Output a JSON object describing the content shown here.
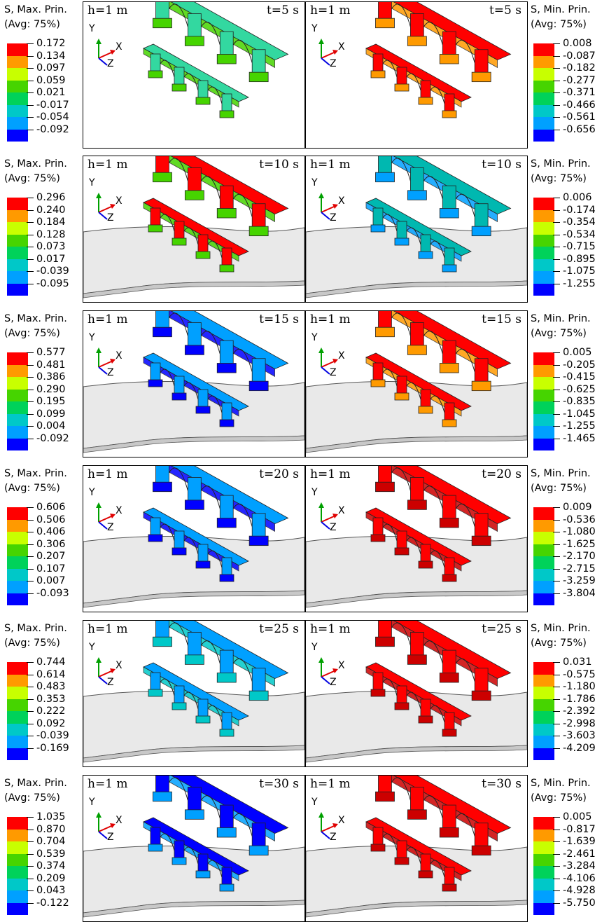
{
  "colors": {
    "scale": [
      "#ff0000",
      "#ff9a00",
      "#c8ff00",
      "#46d400",
      "#00d25a",
      "#00c8c8",
      "#00a0ff",
      "#0000ff"
    ],
    "water": "#e9e9e9",
    "water_edge": "#555555"
  },
  "axis_labels": {
    "y": "Y",
    "x": "X",
    "z": "Z"
  },
  "rows": [
    {
      "time": "t=5 s",
      "depth": "h=1 m",
      "left_title": "S, Max. Prin.",
      "left_sub": "(Avg: 75%)",
      "left_ticks": [
        "0.172",
        "0.134",
        "0.097",
        "0.059",
        "0.021",
        "-0.017",
        "-0.054",
        "-0.092"
      ],
      "right_title": "S, Min. Prin.",
      "right_sub": "(Avg: 75%)",
      "right_ticks": [
        "0.008",
        "-0.087",
        "-0.182",
        "-0.277",
        "-0.371",
        "-0.466",
        "-0.561",
        "-0.656"
      ]
    },
    {
      "time": "t=10 s",
      "depth": "h=1 m",
      "left_title": "S, Max. Prin.",
      "left_sub": "(Avg: 75%)",
      "left_ticks": [
        "0.296",
        "0.240",
        "0.184",
        "0.128",
        "0.073",
        "0.017",
        "-0.039",
        "-0.095"
      ],
      "right_title": "S, Min. Prin.",
      "right_sub": "(Avg: 75%)",
      "right_ticks": [
        "0.006",
        "-0.174",
        "-0.354",
        "-0.534",
        "-0.715",
        "-0.895",
        "-1.075",
        "-1.255"
      ]
    },
    {
      "time": "t=15 s",
      "depth": "h=1 m",
      "left_title": "S, Max. Prin.",
      "left_sub": "(Avg: 75%)",
      "left_ticks": [
        "0.577",
        "0.481",
        "0.386",
        "0.290",
        "0.195",
        "0.099",
        "0.004",
        "-0.092"
      ],
      "right_title": "S, Min. Prin.",
      "right_sub": "(Avg: 75%)",
      "right_ticks": [
        "0.005",
        "-0.205",
        "-0.415",
        "-0.625",
        "-0.835",
        "-1.045",
        "-1.255",
        "-1.465"
      ]
    },
    {
      "time": "t=20 s",
      "depth": "h=1 m",
      "left_title": "S, Max. Prin.",
      "left_sub": "(Avg: 75%)",
      "left_ticks": [
        "0.606",
        "0.506",
        "0.406",
        "0.306",
        "0.207",
        "0.107",
        "0.007",
        "-0.093"
      ],
      "right_title": "S, Min. Prin.",
      "right_sub": "(Avg: 75%)",
      "right_ticks": [
        "0.009",
        "-0.536",
        "-1.080",
        "-1.625",
        "-2.170",
        "-2.715",
        "-3.259",
        "-3.804"
      ]
    },
    {
      "time": "t=25 s",
      "depth": "h=1 m",
      "left_title": "S, Max. Prin.",
      "left_sub": "(Avg: 75%)",
      "left_ticks": [
        "0.744",
        "0.614",
        "0.483",
        "0.353",
        "0.222",
        "0.092",
        "-0.039",
        "-0.169"
      ],
      "right_title": "S, Min. Prin.",
      "right_sub": "(Avg: 75%)",
      "right_ticks": [
        "0.031",
        "-0.575",
        "-1.180",
        "-1.786",
        "-2.392",
        "-2.998",
        "-3.603",
        "-4.209"
      ]
    },
    {
      "time": "t=30 s",
      "depth": "h=1 m",
      "left_title": "S, Max. Prin.",
      "left_sub": "(Avg: 75%)",
      "left_ticks": [
        "1.035",
        "0.870",
        "0.704",
        "0.539",
        "0.374",
        "0.209",
        "0.043",
        "-0.122"
      ],
      "right_title": "S, Min. Prin.",
      "right_sub": "(Avg: 75%)",
      "right_ticks": [
        "0.005",
        "-0.817",
        "-1.639",
        "-2.461",
        "-3.284",
        "-4.106",
        "-4.928",
        "-5.750"
      ]
    }
  ],
  "panels": [
    {
      "row": 0,
      "side": "left",
      "main": "#33d8a0",
      "accent": "#46d400",
      "water": false
    },
    {
      "row": 0,
      "side": "right",
      "main": "#ff0000",
      "accent": "#ff9a00",
      "water": false
    },
    {
      "row": 1,
      "side": "left",
      "main": "#ff0000",
      "accent": "#46d400",
      "water": true
    },
    {
      "row": 1,
      "side": "right",
      "main": "#00b8b0",
      "accent": "#00a0ff",
      "water": true
    },
    {
      "row": 2,
      "side": "left",
      "main": "#00a0ff",
      "accent": "#0000ff",
      "water": true
    },
    {
      "row": 2,
      "side": "right",
      "main": "#ff0000",
      "accent": "#ff9a00",
      "water": true
    },
    {
      "row": 3,
      "side": "left",
      "main": "#00a0ff",
      "accent": "#0000ff",
      "water": true
    },
    {
      "row": 3,
      "side": "right",
      "main": "#ff0000",
      "accent": "#cc0000",
      "water": true
    },
    {
      "row": 4,
      "side": "left",
      "main": "#00a0ff",
      "accent": "#00c8c8",
      "water": true
    },
    {
      "row": 4,
      "side": "right",
      "main": "#ff0000",
      "accent": "#cc0000",
      "water": true
    },
    {
      "row": 5,
      "side": "left",
      "main": "#0000ff",
      "accent": "#00a0ff",
      "water": true
    },
    {
      "row": 5,
      "side": "right",
      "main": "#ff0000",
      "accent": "#cc0000",
      "water": true
    }
  ]
}
